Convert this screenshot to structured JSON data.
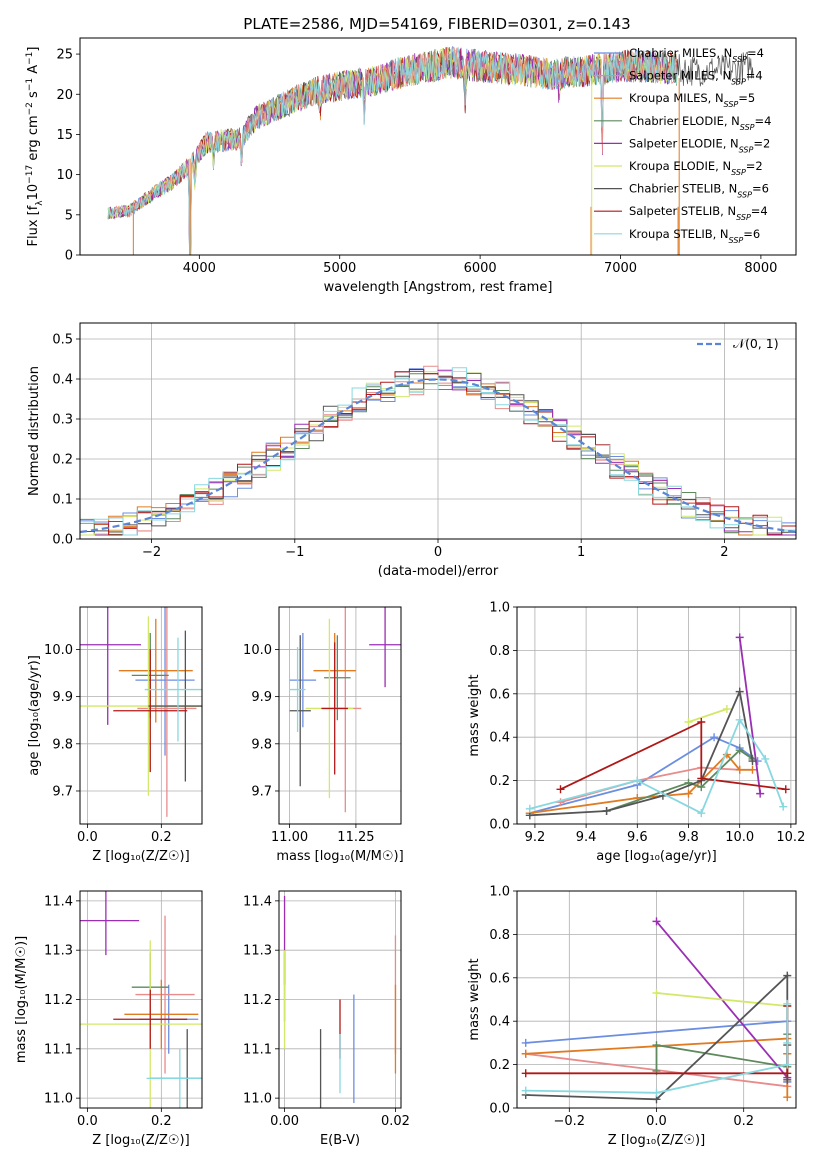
{
  "figure_title": "PLATE=2586, MJD=54169, FIBERID=0301, z=0.143",
  "palette": {
    "Chabrier MILES": "#6b8ee0",
    "Salpeter MILES": "#e88b8b",
    "Kroupa MILES": "#e07b22",
    "Chabrier ELODIE": "#5e8a5e",
    "Salpeter ELODIE": "#9a2fb4",
    "Kroupa ELODIE": "#d2e86a",
    "Chabrier STELIB": "#555555",
    "Salpeter STELIB": "#b01818",
    "Kroupa STELIB": "#88d8e0"
  },
  "chart_data": [
    {
      "id": "spectrum",
      "type": "line",
      "title": "PLATE=2586, MJD=54169, FIBERID=0301, z=0.143",
      "xlabel": "wavelength [Angstrom, rest frame]",
      "ylabel_parts": [
        "Flux [f",
        "λ",
        "10",
        "−17",
        " erg cm",
        "−2",
        " s",
        "−1",
        " A",
        "−1",
        "]"
      ],
      "xlim": [
        3150,
        8250
      ],
      "ylim": [
        0,
        27
      ],
      "xticks": [
        4000,
        5000,
        6000,
        7000,
        8000
      ],
      "yticks": [
        0,
        5,
        10,
        15,
        20,
        25
      ],
      "grid": false,
      "legend_position": "top-right",
      "legend": [
        {
          "base": "Chabrier MILES, N",
          "sub": "SSP",
          "tail": "=4"
        },
        {
          "base": "Salpeter MILES, N",
          "sub": "SSP",
          "tail": "=4"
        },
        {
          "base": "Kroupa MILES, N",
          "sub": "SSP",
          "tail": "=5"
        },
        {
          "base": "Chabrier ELODIE, N",
          "sub": "SSP",
          "tail": "=4"
        },
        {
          "base": "Salpeter ELODIE, N",
          "sub": "SSP",
          "tail": "=2"
        },
        {
          "base": "Kroupa ELODIE, N",
          "sub": "SSP",
          "tail": "=2"
        },
        {
          "base": "Chabrier STELIB, N",
          "sub": "SSP",
          "tail": "=6"
        },
        {
          "base": "Salpeter STELIB, N",
          "sub": "SSP",
          "tail": "=4"
        },
        {
          "base": "Kroupa STELIB, N",
          "sub": "SSP",
          "tail": "=6"
        }
      ],
      "continuum": {
        "x": [
          3350,
          3500,
          3700,
          3800,
          3950,
          4050,
          4300,
          4400,
          4700,
          4850,
          5000,
          5200,
          5500,
          5800,
          6000,
          6300,
          6500,
          6800,
          7000,
          7200,
          7400,
          7800,
          8000
        ],
        "y": [
          5.2,
          5.5,
          8.0,
          9.0,
          11.5,
          14.0,
          14.5,
          17.0,
          19.5,
          20.5,
          21.0,
          21.5,
          23.0,
          24.0,
          23.5,
          23.0,
          22.5,
          23.0,
          23.5,
          23.5,
          23.0,
          23.0,
          24.0
        ]
      },
      "absorption_lines": [
        {
          "x": 3934,
          "depth": 18
        },
        {
          "x": 3969,
          "depth": 3
        },
        {
          "x": 4102,
          "depth": 2.5
        },
        {
          "x": 4300,
          "depth": 3
        },
        {
          "x": 4861,
          "depth": 2
        },
        {
          "x": 5175,
          "depth": 4
        },
        {
          "x": 5893,
          "depth": 4.5
        },
        {
          "x": 6563,
          "depth": 2.5
        },
        {
          "x": 6870,
          "depth": 10
        }
      ],
      "masked_regions": [
        [
          3530,
          3600
        ],
        [
          6790,
          6810
        ],
        [
          7410,
          7430
        ]
      ],
      "range": [
        3350,
        7950
      ]
    },
    {
      "id": "residuals",
      "type": "histogram",
      "xlabel": "(data-model)/error",
      "ylabel": "Normed distribution",
      "xlim": [
        -2.5,
        2.5
      ],
      "ylim": [
        0,
        0.54
      ],
      "xticks": [
        -2,
        -1,
        0,
        1,
        2
      ],
      "yticks": [
        0,
        0.1,
        0.2,
        0.3,
        0.4,
        0.5
      ],
      "grid": true,
      "bin_width": 0.1,
      "legend_position": "top-right",
      "curve_label": "𝒩(0, 1)",
      "curve": {
        "type": "gaussian",
        "mean": 0,
        "sigma": 1
      }
    },
    {
      "id": "age_vs_Z",
      "type": "scatter",
      "xlabel": "Z [log₁₀(Z/Z☉)]",
      "ylabel": "age  [log₁₀(age/yr)]",
      "xlim": [
        -0.02,
        0.31
      ],
      "ylim": [
        9.63,
        10.09
      ],
      "xticks": [
        0.0,
        0.2
      ],
      "yticks": [
        9.7,
        9.8,
        9.9,
        10.0
      ],
      "grid": true,
      "points": [
        {
          "model": "Chabrier MILES",
          "x": 0.21,
          "xerr": 0.08,
          "y": 9.935,
          "yerr": 0.16
        },
        {
          "model": "Salpeter MILES",
          "x": 0.215,
          "xerr": 0.08,
          "y": 9.875,
          "yerr": 0.23
        },
        {
          "model": "Kroupa MILES",
          "x": 0.185,
          "xerr": 0.1,
          "y": 9.955,
          "yerr": 0.11
        },
        {
          "model": "Chabrier ELODIE",
          "x": 0.17,
          "xerr": 0.05,
          "y": 9.945,
          "yerr": 0.09
        },
        {
          "model": "Salpeter ELODIE",
          "x": 0.055,
          "xerr": 0.09,
          "y": 10.01,
          "yerr": 0.17
        },
        {
          "model": "Kroupa ELODIE",
          "x": 0.165,
          "xerr": 0.2,
          "y": 9.88,
          "yerr": 0.19
        },
        {
          "model": "Chabrier STELIB",
          "x": 0.265,
          "xerr": 0.1,
          "y": 9.88,
          "yerr": 0.16
        },
        {
          "model": "Salpeter STELIB",
          "x": 0.17,
          "xerr": 0.1,
          "y": 9.87,
          "yerr": 0.13
        },
        {
          "model": "Kroupa STELIB",
          "x": 0.245,
          "xerr": 0.09,
          "y": 9.915,
          "yerr": 0.11
        }
      ]
    },
    {
      "id": "age_vs_mass",
      "type": "scatter",
      "xlabel": "mass [log₁₀(M/M☉)]",
      "ylabel": "",
      "xlim": [
        10.96,
        11.42
      ],
      "ylim": [
        9.63,
        10.09
      ],
      "xticks": [
        11.0,
        11.25
      ],
      "yticks": [
        9.7,
        9.8,
        9.9,
        10.0
      ],
      "grid": true,
      "points": [
        {
          "model": "Chabrier MILES",
          "x": 11.05,
          "xerr": 0.05,
          "y": 9.935,
          "yerr": 0.1
        },
        {
          "model": "Salpeter MILES",
          "x": 11.21,
          "xerr": 0.06,
          "y": 9.875,
          "yerr": 0.22
        },
        {
          "model": "Kroupa MILES",
          "x": 11.17,
          "xerr": 0.08,
          "y": 9.955,
          "yerr": 0.08
        },
        {
          "model": "Chabrier ELODIE",
          "x": 11.18,
          "xerr": 0.05,
          "y": 9.94,
          "yerr": 0.09
        },
        {
          "model": "Salpeter ELODIE",
          "x": 11.36,
          "xerr": 0.06,
          "y": 10.01,
          "yerr": 0.09
        },
        {
          "model": "Kroupa ELODIE",
          "x": 11.15,
          "xerr": 0.09,
          "y": 9.875,
          "yerr": 0.19
        },
        {
          "model": "Chabrier STELIB",
          "x": 11.04,
          "xerr": 0.04,
          "y": 9.87,
          "yerr": 0.16
        },
        {
          "model": "Salpeter STELIB",
          "x": 11.17,
          "xerr": 0.05,
          "y": 9.875,
          "yerr": 0.14
        },
        {
          "model": "Kroupa STELIB",
          "x": 11.03,
          "xerr": 0.03,
          "y": 9.915,
          "yerr": 0.09
        }
      ]
    },
    {
      "id": "weight_vs_age",
      "type": "line",
      "xlabel": "age  [log₁₀(age/yr)]",
      "ylabel": "mass weight",
      "xlim": [
        9.13,
        10.22
      ],
      "ylim": [
        0,
        1
      ],
      "xticks": [
        9.2,
        9.4,
        9.6,
        9.8,
        10.0,
        10.2
      ],
      "yticks": [
        0.0,
        0.2,
        0.4,
        0.6,
        0.8,
        1.0
      ],
      "grid": true,
      "series": [
        {
          "model": "Chabrier MILES",
          "x": [
            9.18,
            9.6,
            9.9,
            10.0,
            10.07
          ],
          "y": [
            0.05,
            0.18,
            0.4,
            0.35,
            0.29
          ]
        },
        {
          "model": "Salpeter MILES",
          "x": [
            9.3,
            9.6,
            9.85,
            10.0
          ],
          "y": [
            0.1,
            0.2,
            0.26,
            0.25
          ]
        },
        {
          "model": "Kroupa MILES",
          "x": [
            9.18,
            9.6,
            9.8,
            9.95,
            10.0,
            10.05
          ],
          "y": [
            0.05,
            0.12,
            0.14,
            0.32,
            0.25,
            0.25
          ]
        },
        {
          "model": "Chabrier ELODIE",
          "x": [
            9.48,
            9.8,
            9.85,
            10.0,
            10.05
          ],
          "y": [
            0.06,
            0.19,
            0.17,
            0.34,
            0.3
          ]
        },
        {
          "model": "Salpeter ELODIE",
          "x": [
            10.0,
            10.08
          ],
          "y": [
            0.86,
            0.14
          ]
        },
        {
          "model": "Kroupa ELODIE",
          "x": [
            9.8,
            9.95
          ],
          "y": [
            0.47,
            0.53
          ]
        },
        {
          "model": "Chabrier STELIB",
          "x": [
            9.18,
            9.48,
            9.7,
            9.85,
            10.0,
            10.05
          ],
          "y": [
            0.04,
            0.06,
            0.13,
            0.2,
            0.61,
            0.29
          ]
        },
        {
          "model": "Salpeter STELIB",
          "x": [
            9.3,
            9.85,
            9.85,
            10.18
          ],
          "y": [
            0.16,
            0.47,
            0.21,
            0.16
          ]
        },
        {
          "model": "Kroupa STELIB",
          "x": [
            9.18,
            9.6,
            9.85,
            10.0,
            10.1,
            10.17
          ],
          "y": [
            0.07,
            0.2,
            0.05,
            0.48,
            0.3,
            0.08
          ]
        }
      ]
    },
    {
      "id": "mass_vs_Z",
      "type": "scatter",
      "xlabel": "Z [log₁₀(Z/Z☉)]",
      "ylabel": "mass [log₁₀(M/M☉)]",
      "xlim": [
        -0.02,
        0.31
      ],
      "ylim": [
        10.98,
        11.42
      ],
      "xticks": [
        0.0,
        0.2
      ],
      "yticks": [
        11.0,
        11.1,
        11.2,
        11.3,
        11.4
      ],
      "grid": true,
      "points": [
        {
          "model": "Chabrier MILES",
          "x": 0.22,
          "xerr": 0.08,
          "y": 11.16,
          "yerr": 0.07
        },
        {
          "model": "Salpeter MILES",
          "x": 0.21,
          "xerr": 0.08,
          "y": 11.21,
          "yerr": 0.16
        },
        {
          "model": "Kroupa MILES",
          "x": 0.2,
          "xerr": 0.1,
          "y": 11.17,
          "yerr": 0.07
        },
        {
          "model": "Chabrier ELODIE",
          "x": 0.17,
          "xerr": 0.05,
          "y": 11.225,
          "yerr": 0.07
        },
        {
          "model": "Salpeter ELODIE",
          "x": 0.05,
          "xerr": 0.09,
          "y": 11.36,
          "yerr": 0.07
        },
        {
          "model": "Kroupa ELODIE",
          "x": 0.17,
          "xerr": 0.2,
          "y": 11.15,
          "yerr": 0.17
        },
        {
          "model": "Chabrier STELIB",
          "x": 0.27,
          "xerr": 0.1,
          "y": 11.04,
          "yerr": 0.1
        },
        {
          "model": "Salpeter STELIB",
          "x": 0.17,
          "xerr": 0.1,
          "y": 11.16,
          "yerr": 0.06
        },
        {
          "model": "Kroupa STELIB",
          "x": 0.25,
          "xerr": 0.09,
          "y": 11.04,
          "yerr": 0.06
        }
      ]
    },
    {
      "id": "mass_vs_ebv",
      "type": "scatter",
      "xlabel": "E(B-V)",
      "ylabel": "",
      "xlim": [
        -0.001,
        0.021
      ],
      "ylim": [
        10.98,
        11.42
      ],
      "xticks": [
        0.0,
        0.02
      ],
      "yticks": [
        11.0,
        11.1,
        11.2,
        11.3,
        11.4
      ],
      "grid": true,
      "points": [
        {
          "model": "Chabrier MILES",
          "x": 0.0125,
          "xerr": 0,
          "y": 11.1,
          "yerr": 0.11
        },
        {
          "model": "Salpeter MILES",
          "x": 0.02,
          "xerr": 0,
          "y": 11.21,
          "yerr": 0.12
        },
        {
          "model": "Kroupa MILES",
          "x": 0.02,
          "xerr": 0,
          "y": 11.14,
          "yerr": 0.09
        },
        {
          "model": "Chabrier ELODIE",
          "x": 0.0,
          "xerr": 0,
          "y": 11.225,
          "yerr": 0.07
        },
        {
          "model": "Salpeter ELODIE",
          "x": 0.0,
          "xerr": 0,
          "y": 11.32,
          "yerr": 0.09
        },
        {
          "model": "Kroupa ELODIE",
          "x": 0.0,
          "xerr": 0,
          "y": 11.2,
          "yerr": 0.1
        },
        {
          "model": "Chabrier STELIB",
          "x": 0.0065,
          "xerr": 0,
          "y": 11.06,
          "yerr": 0.08
        },
        {
          "model": "Salpeter STELIB",
          "x": 0.01,
          "xerr": 0,
          "y": 11.14,
          "yerr": 0.06
        },
        {
          "model": "Kroupa STELIB",
          "x": 0.01,
          "xerr": 0,
          "y": 11.07,
          "yerr": 0.06
        }
      ]
    },
    {
      "id": "weight_vs_Z",
      "type": "line",
      "xlabel": "Z [log₁₀(Z/Z☉)]",
      "ylabel": "mass weight",
      "xlim": [
        -0.32,
        0.32
      ],
      "ylim": [
        0,
        1
      ],
      "xticks": [
        -0.2,
        0.0,
        0.2
      ],
      "yticks": [
        0.0,
        0.2,
        0.4,
        0.6,
        0.8,
        1.0
      ],
      "grid": true,
      "series": [
        {
          "model": "Chabrier MILES",
          "x": [
            -0.3,
            0.3,
            0.3,
            0.3
          ],
          "y": [
            0.3,
            0.4,
            0.12,
            0.12
          ]
        },
        {
          "model": "Salpeter MILES",
          "x": [
            -0.3,
            0.3,
            0.3
          ],
          "y": [
            0.25,
            0.1,
            0.25
          ]
        },
        {
          "model": "Kroupa MILES",
          "x": [
            -0.3,
            0.3,
            0.3,
            0.3
          ],
          "y": [
            0.25,
            0.32,
            0.05,
            0.25
          ]
        },
        {
          "model": "Chabrier ELODIE",
          "x": [
            0.0,
            0.0,
            0.3,
            0.3
          ],
          "y": [
            0.17,
            0.29,
            0.19,
            0.34
          ]
        },
        {
          "model": "Salpeter ELODIE",
          "x": [
            0.0,
            0.3
          ],
          "y": [
            0.86,
            0.14
          ]
        },
        {
          "model": "Kroupa ELODIE",
          "x": [
            0.0,
            0.3
          ],
          "y": [
            0.53,
            0.47
          ]
        },
        {
          "model": "Chabrier STELIB",
          "x": [
            -0.3,
            0.0,
            0.3,
            0.3,
            0.3
          ],
          "y": [
            0.06,
            0.04,
            0.61,
            0.13,
            0.29
          ]
        },
        {
          "model": "Salpeter STELIB",
          "x": [
            -0.3,
            0.3,
            0.3
          ],
          "y": [
            0.16,
            0.16,
            0.47
          ]
        },
        {
          "model": "Kroupa STELIB",
          "x": [
            -0.3,
            0.0,
            0.3,
            0.3,
            0.3
          ],
          "y": [
            0.08,
            0.07,
            0.2,
            0.48,
            0.3
          ]
        }
      ]
    }
  ]
}
